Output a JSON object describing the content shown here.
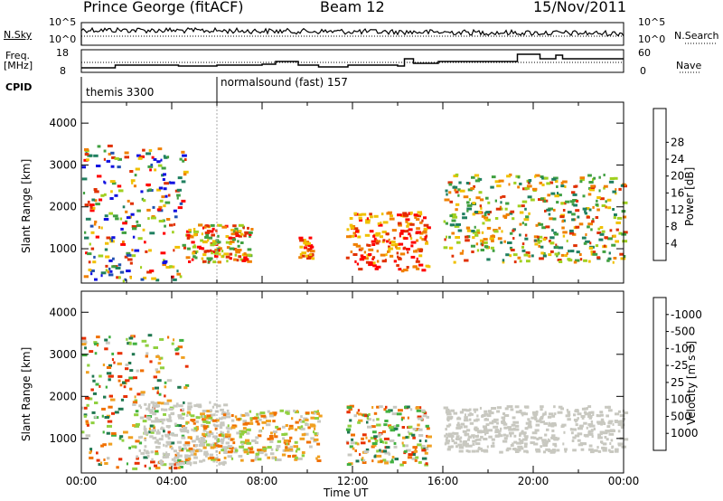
{
  "header": {
    "station": "Prince George (fitACF)",
    "beam": "Beam 12",
    "date": "15/Nov/2011"
  },
  "strip": {
    "nsky_label": "N.Sky",
    "nsky_ticks": [
      "10^5",
      "10^0"
    ],
    "nsearch_label": "N.Search",
    "nsearch_ticks": [
      "10^5",
      "10^0"
    ],
    "freq_label": "Freq.",
    "freq_unit": "[MHz]",
    "freq_ticks": [
      "18",
      "8"
    ],
    "nave_label": "Nave",
    "nave_ticks": [
      "60",
      "0"
    ],
    "cpid_label": "CPID",
    "programs": [
      {
        "name": "themis 3300",
        "start_hour": 0
      },
      {
        "name": "normalsound (fast) 157",
        "start_hour": 6
      }
    ]
  },
  "chart_data": [
    {
      "type": "heatmap",
      "name": "power-panel",
      "ylabel": "Slant Range [km]",
      "xlabel": "Time UT",
      "x_ticks": [
        "00:00",
        "04:00",
        "08:00",
        "12:00",
        "16:00",
        "20:00",
        "00:00"
      ],
      "x_range_hours": [
        0,
        24
      ],
      "y_ticks": [
        1000,
        2000,
        3000,
        4000
      ],
      "y_range_km": [
        180,
        4500
      ],
      "colorbar": {
        "label": "Power [dB]",
        "ticks": [
          4,
          8,
          12,
          16,
          20,
          24,
          28
        ],
        "colors": [
          "#1010e0",
          "#2050b0",
          "#208060",
          "#40a040",
          "#a0d020",
          "#f0c000",
          "#f08000",
          "#e03000",
          "#ff0000"
        ]
      },
      "regions": [
        {
          "t0": 0.0,
          "t1": 4.6,
          "r0": 250,
          "r1": 3500,
          "level": "mixed-high"
        },
        {
          "t0": 4.6,
          "t1": 7.5,
          "r0": 700,
          "r1": 1600,
          "level": "high"
        },
        {
          "t0": 9.6,
          "t1": 10.2,
          "r0": 800,
          "r1": 1300,
          "level": "very-high"
        },
        {
          "t0": 11.7,
          "t1": 15.3,
          "r0": 500,
          "r1": 1900,
          "level": "very-high"
        },
        {
          "t0": 16.0,
          "t1": 24.0,
          "r0": 700,
          "r1": 2800,
          "level": "mid"
        }
      ]
    },
    {
      "type": "heatmap",
      "name": "velocity-panel",
      "ylabel": "Slant Range [km]",
      "xlabel": "Time UT",
      "x_ticks": [
        "00:00",
        "04:00",
        "08:00",
        "12:00",
        "16:00",
        "20:00",
        "00:00"
      ],
      "x_range_hours": [
        0,
        24
      ],
      "y_ticks": [
        1000,
        2000,
        3000,
        4000
      ],
      "y_range_km": [
        180,
        4500
      ],
      "colorbar": {
        "label": "Velocity [m s⁻¹]",
        "ticks": [
          "1000",
          "500",
          "100",
          "25",
          "-25",
          "-100",
          "-500",
          "-1000"
        ],
        "colors": [
          "#1838b0",
          "#207850",
          "#40b040",
          "#90d040",
          "#c8c8c0",
          "#f0a020",
          "#f07000",
          "#e83000",
          "#ff0000"
        ]
      },
      "regions": [
        {
          "t0": 0.0,
          "t1": 4.6,
          "r0": 300,
          "r1": 3500,
          "level": "mixed"
        },
        {
          "t0": 2.5,
          "t1": 6.5,
          "r0": 400,
          "r1": 1900,
          "level": "ground-scatter"
        },
        {
          "t0": 4.5,
          "t1": 10.5,
          "r0": 500,
          "r1": 1700,
          "level": "negative"
        },
        {
          "t0": 11.7,
          "t1": 15.3,
          "r0": 400,
          "r1": 1800,
          "level": "mixed"
        },
        {
          "t0": 16.0,
          "t1": 24.0,
          "r0": 700,
          "r1": 1800,
          "level": "ground-scatter"
        }
      ]
    }
  ]
}
